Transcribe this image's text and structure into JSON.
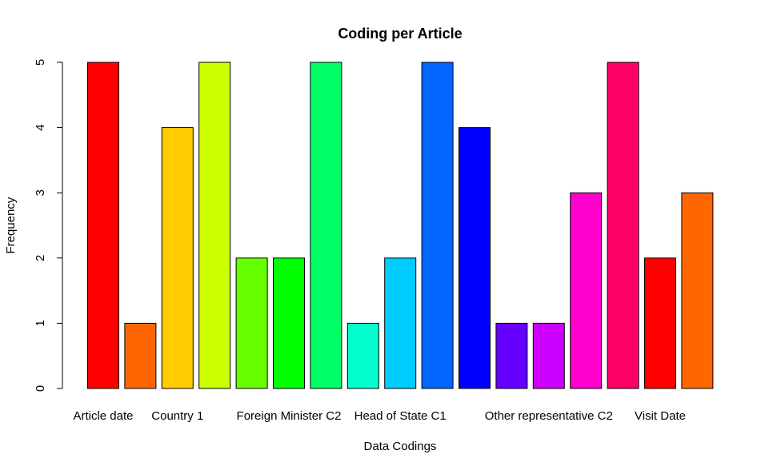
{
  "chart_data": {
    "type": "bar",
    "title": "Coding per Article",
    "xlabel": "Data Codings",
    "ylabel": "Frequency",
    "ylim": [
      0,
      5
    ],
    "yticks": [
      0,
      1,
      2,
      3,
      4,
      5
    ],
    "categories": [
      "Article date",
      "",
      "Country 1",
      "",
      "",
      "Foreign Minister C2",
      "",
      "",
      "Head of State C1",
      "",
      "",
      "",
      "Other representative C2",
      "",
      "",
      "Visit Date",
      ""
    ],
    "values": [
      5,
      1,
      4,
      5,
      2,
      2,
      5,
      1,
      2,
      5,
      4,
      1,
      1,
      3,
      5,
      2,
      3
    ],
    "colors": [
      "#FF0000",
      "#FF6600",
      "#FFCC00",
      "#CCFF00",
      "#66FF00",
      "#00FF00",
      "#00FF66",
      "#00FFCC",
      "#00CCFF",
      "#0066FF",
      "#0000FF",
      "#6600FF",
      "#CC00FF",
      "#FF00CC",
      "#FF0066",
      "#FF0000",
      "#FF6600"
    ],
    "grid": false,
    "legend": "none"
  }
}
